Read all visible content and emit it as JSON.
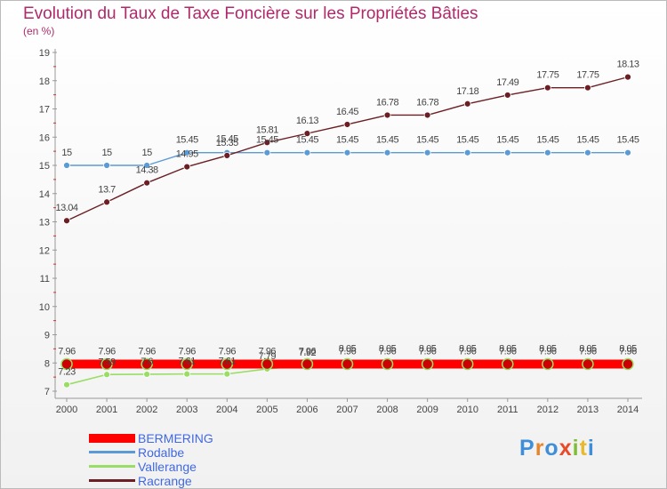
{
  "header": {
    "title": "Evolution du Taux de Taxe Foncière sur les Propriétés Bâties",
    "unit": "(en %)"
  },
  "chart_data": {
    "type": "line",
    "x": [
      2000,
      2001,
      2002,
      2003,
      2004,
      2005,
      2006,
      2007,
      2008,
      2009,
      2010,
      2011,
      2012,
      2013,
      2014
    ],
    "ylim": [
      7,
      19
    ],
    "yticks": [
      7,
      8,
      9,
      10,
      11,
      12,
      13,
      14,
      15,
      16,
      17,
      18,
      19
    ],
    "grid": false,
    "series": [
      {
        "name": "BERMERING",
        "color": "#ff0000",
        "values": [
          7.96,
          7.96,
          7.96,
          7.96,
          7.96,
          7.96,
          7.96,
          7.96,
          7.96,
          7.96,
          7.96,
          7.96,
          7.96,
          7.96,
          7.96
        ]
      },
      {
        "name": "Rodalbe",
        "color": "#5b9bd5",
        "values": [
          15,
          15,
          15,
          15.45,
          15.45,
          15.45,
          15.45,
          15.45,
          15.45,
          15.45,
          15.45,
          15.45,
          15.45,
          15.45,
          15.45
        ]
      },
      {
        "name": "Vallerange",
        "color": "#99dd66",
        "values": [
          7.23,
          7.59,
          7.6,
          7.61,
          7.61,
          7.79,
          7.92,
          8.05,
          8.05,
          8.05,
          8.05,
          8.05,
          8.05,
          8.05,
          8.05
        ]
      },
      {
        "name": "Racrange",
        "color": "#6b1f24",
        "values": [
          13.04,
          13.7,
          14.38,
          14.95,
          15.35,
          15.81,
          16.13,
          16.45,
          16.78,
          16.78,
          17.18,
          17.49,
          17.75,
          17.75,
          18.13
        ]
      }
    ]
  },
  "logo": {
    "letters": [
      "P",
      "r",
      "o",
      "x",
      "i",
      "t",
      "i"
    ],
    "colors": [
      "#3f8fd8",
      "#e8852a",
      "#3f8fd8",
      "#e84b2a",
      "#7cbf35",
      "#e8b92a",
      "#3f8fd8"
    ]
  }
}
